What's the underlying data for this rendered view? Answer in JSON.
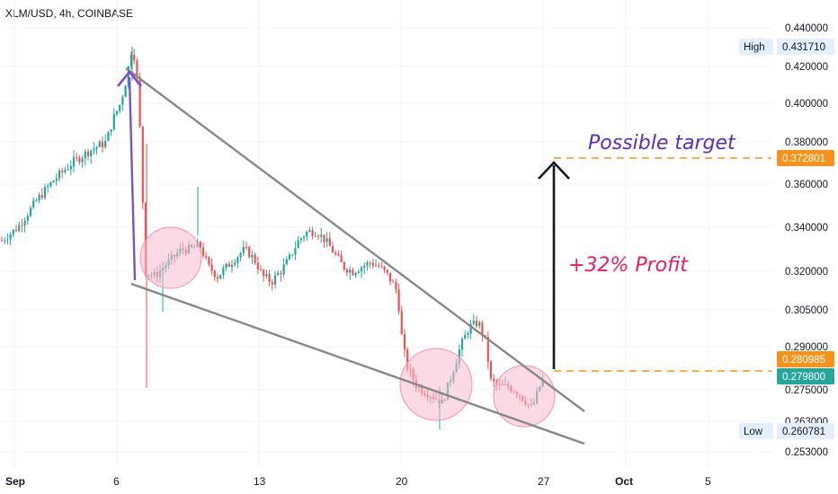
{
  "header": {
    "title": "XLM/USD, 4h, COINBASE"
  },
  "colors": {
    "up": "#26a69a",
    "down": "#ef5350",
    "wedge": "#888888",
    "arrow_purple": "#7b52c8",
    "arrow_black": "#131722",
    "target_label": "#5b2fb5",
    "profit_label": "#e91e63",
    "orange_badge": "#f7931a",
    "teal_badge": "#26a69a",
    "circle_fill": "#f8bbd0",
    "circle_stroke": "#f48fb1"
  },
  "annotations": {
    "target_text": "Possible target",
    "profit_text": "+32% Profit"
  },
  "badges": {
    "high_label": "High",
    "high_value": "0.431710",
    "low_label": "Low",
    "low_value": "0.260781",
    "target_value": "0.372801",
    "level_value": "0.280985",
    "last_value": "0.279800"
  },
  "chart_data": {
    "type": "candlestick",
    "title": "XLM/USD, 4h, COINBASE",
    "xlabel": "",
    "ylabel": "",
    "x_ticks": [
      "Sep",
      "6",
      "13",
      "20",
      "27",
      "Oct",
      "5"
    ],
    "y_ticks": [
      "0.440000",
      "0.420000",
      "0.400000",
      "0.380000",
      "0.360000",
      "0.340000",
      "0.320000",
      "0.305000",
      "0.290000",
      "0.275000",
      "0.263000",
      "0.253000"
    ],
    "ylim": [
      0.25,
      0.445
    ],
    "y_scale": "log",
    "grid": true,
    "price_high": 0.43171,
    "price_low": 0.260781,
    "target_level": 0.372801,
    "breakout_level": 0.280985,
    "last_price": 0.2798,
    "expected_profit_percent": 32,
    "pattern": "falling wedge",
    "candles_summary": [
      {
        "x": "Sep",
        "close": 0.337
      },
      {
        "x": "6",
        "close": 0.4
      },
      {
        "x": "Sep 6 peak",
        "close": 0.428
      },
      {
        "x": "7",
        "close": 0.32
      },
      {
        "x": "13",
        "close": 0.326
      },
      {
        "x": "16",
        "close": 0.338
      },
      {
        "x": "20",
        "close": 0.282
      },
      {
        "x": "22",
        "close": 0.27
      },
      {
        "x": "24",
        "close": 0.298
      },
      {
        "x": "26",
        "close": 0.268
      },
      {
        "x": "27",
        "close": 0.2798
      }
    ]
  }
}
